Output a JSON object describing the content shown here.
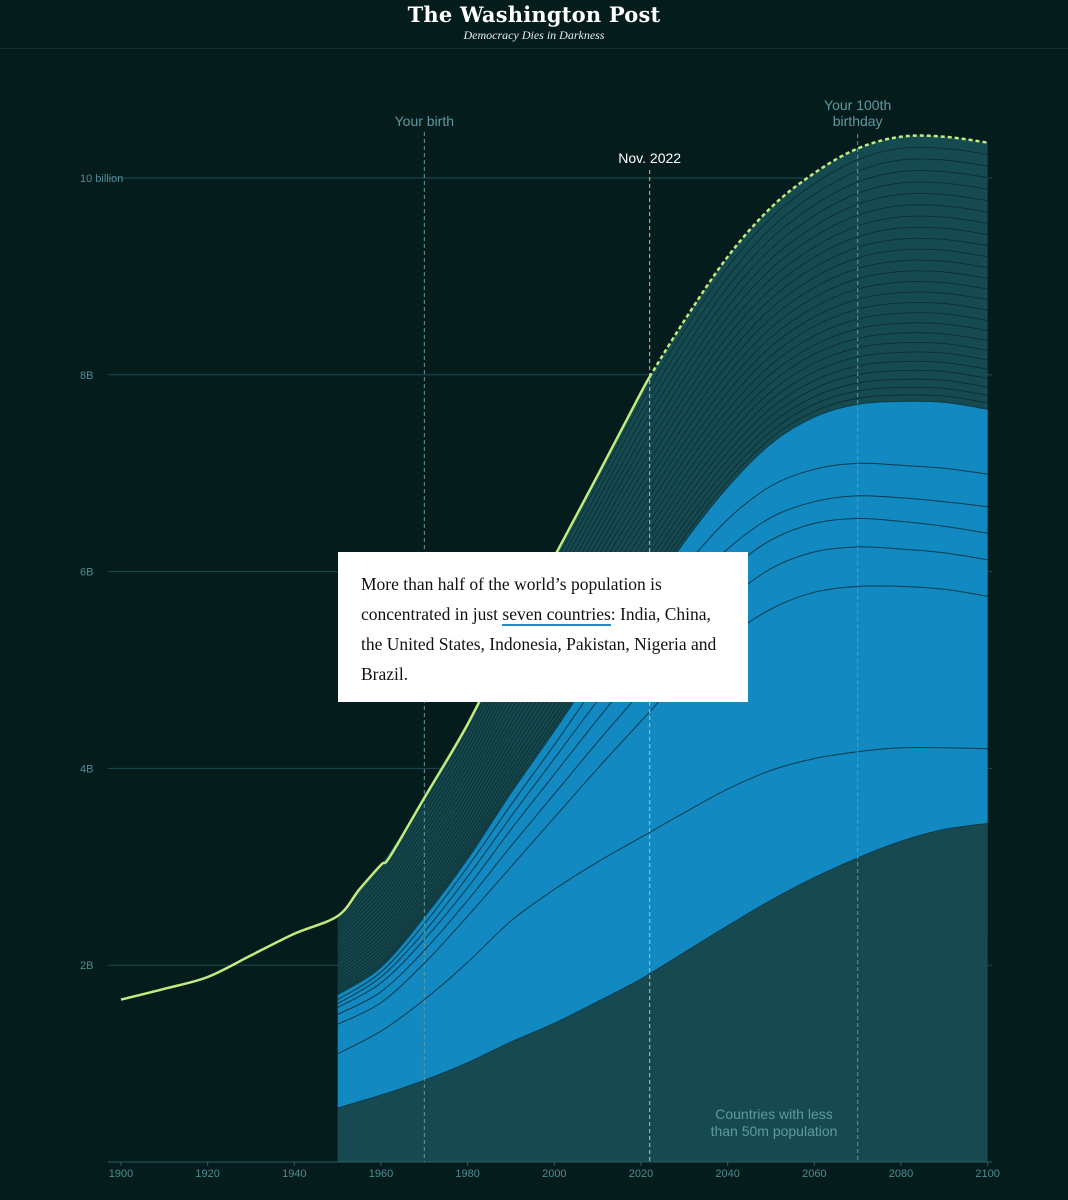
{
  "masthead": {
    "title": "The Washington Post",
    "tagline": "Democracy Dies in Darkness"
  },
  "annotation": {
    "text_before": "More than half of the world’s population is concentrated in just ",
    "link_text": "seven countries",
    "text_after": ": India, China, the United States, Indonesia, Pakistan, Nigeria and Brazil."
  },
  "colors": {
    "background": "#051c1c",
    "total_line": "#c3ec7e",
    "seven_countries_fill": "#1289c1",
    "other_countries_fill": "#154a50",
    "small_countries_fill": "#174a50",
    "grid": "#1e4a52",
    "axis_text": "#4d8c94",
    "marker_text": "#5e9aa1"
  },
  "chart_data": {
    "type": "area",
    "title": "",
    "xlabel": "",
    "ylabel": "",
    "xlim": [
      1897,
      2101
    ],
    "ylim": [
      0,
      10.5
    ],
    "y_unit": "billion",
    "x_ticks": [
      1900,
      1920,
      1940,
      1960,
      1980,
      2000,
      2020,
      2040,
      2060,
      2080,
      2100
    ],
    "y_ticks": [
      {
        "value": 2,
        "label": "2B"
      },
      {
        "value": 4,
        "label": "4B"
      },
      {
        "value": 6,
        "label": "6B"
      },
      {
        "value": 8,
        "label": "8B"
      },
      {
        "value": 10,
        "label": "10 billion"
      }
    ],
    "grid": true,
    "markers": [
      {
        "x": 1970,
        "label": "Your birth"
      },
      {
        "x": 2022,
        "label": "Nov. 2022"
      },
      {
        "x": 2070,
        "label": "Your 100th birthday"
      }
    ],
    "area_label": "Countries with less than 50m population",
    "total_population": {
      "historical_x": [
        1900,
        1910,
        1920,
        1930,
        1940,
        1950,
        1955,
        1960,
        1962,
        1970,
        1980,
        1990,
        2000,
        2010,
        2020,
        2022
      ],
      "historical_y": [
        1.65,
        1.76,
        1.88,
        2.1,
        2.32,
        2.5,
        2.77,
        3.02,
        3.1,
        3.7,
        4.45,
        5.32,
        6.15,
        6.98,
        7.82,
        7.98
      ],
      "projected_x": [
        2022,
        2030,
        2040,
        2050,
        2060,
        2070,
        2080,
        2090,
        2100
      ],
      "projected_y": [
        7.98,
        8.55,
        9.2,
        9.7,
        10.05,
        10.3,
        10.42,
        10.42,
        10.36
      ]
    },
    "stack_x": [
      1950,
      1960,
      1970,
      1980,
      1990,
      2000,
      2010,
      2020,
      2030,
      2040,
      2050,
      2060,
      2070,
      2080,
      2090,
      2100
    ],
    "small_countries": [
      0.55,
      0.68,
      0.83,
      1.01,
      1.22,
      1.41,
      1.63,
      1.86,
      2.13,
      2.4,
      2.66,
      2.89,
      3.09,
      3.26,
      3.38,
      3.44
    ],
    "seven_countries_boundaries": [
      [
        1.1,
        1.33,
        1.65,
        2.03,
        2.45,
        2.77,
        3.05,
        3.3,
        3.55,
        3.79,
        3.98,
        4.1,
        4.17,
        4.21,
        4.21,
        4.2
      ],
      [
        1.4,
        1.62,
        2.02,
        2.5,
        3.0,
        3.5,
        4.0,
        4.48,
        4.95,
        5.33,
        5.62,
        5.79,
        5.85,
        5.85,
        5.82,
        5.75
      ],
      [
        1.5,
        1.73,
        2.15,
        2.66,
        3.21,
        3.74,
        4.27,
        4.78,
        5.29,
        5.71,
        6.03,
        6.2,
        6.25,
        6.23,
        6.19,
        6.12
      ],
      [
        1.57,
        1.82,
        2.26,
        2.79,
        3.38,
        3.94,
        4.5,
        5.04,
        5.57,
        6.0,
        6.32,
        6.49,
        6.54,
        6.51,
        6.46,
        6.39
      ],
      [
        1.61,
        1.88,
        2.34,
        2.9,
        3.51,
        4.1,
        4.69,
        5.25,
        5.79,
        6.23,
        6.55,
        6.71,
        6.77,
        6.75,
        6.71,
        6.66
      ],
      [
        1.65,
        1.93,
        2.42,
        3.0,
        3.63,
        4.24,
        4.87,
        5.45,
        6.04,
        6.53,
        6.87,
        7.04,
        7.1,
        7.08,
        7.05,
        6.99
      ],
      [
        1.7,
        1.98,
        2.49,
        3.08,
        3.75,
        4.38,
        5.04,
        5.65,
        6.3,
        6.86,
        7.3,
        7.57,
        7.7,
        7.73,
        7.72,
        7.65
      ]
    ],
    "other_country_bands": 26
  }
}
